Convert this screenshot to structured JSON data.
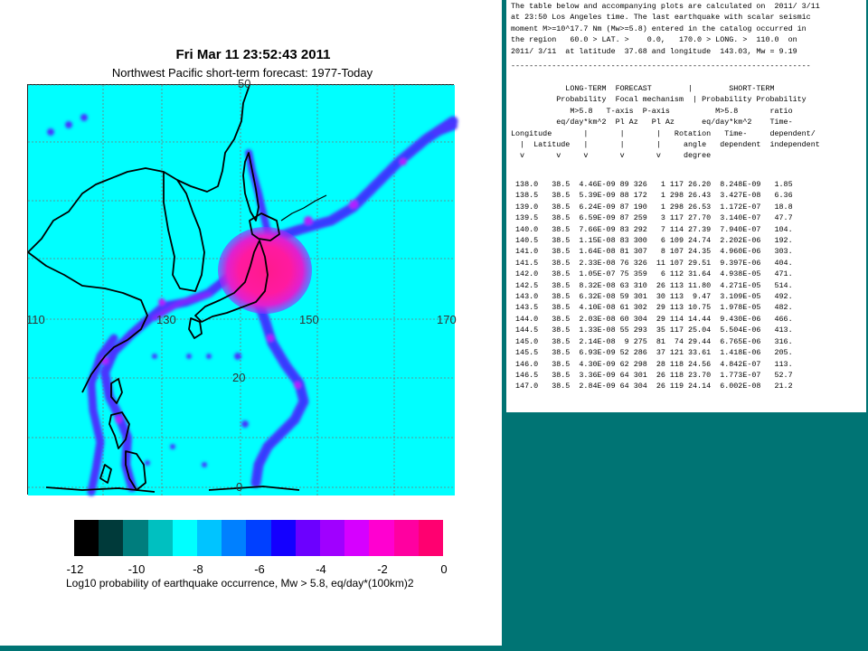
{
  "map": {
    "title": "Fri Mar 11 23:52:43 2011",
    "subtitle": "Northwest Pacific short-term forecast: 1977-Today",
    "lon_labels": [
      "110",
      "130",
      "150",
      "170"
    ],
    "lat_labels": [
      "50",
      "20",
      "0"
    ],
    "colors": {
      "ocean": "#00ffff",
      "grid": "#888888",
      "coast": "#000000",
      "hot": "#ff1a99",
      "cluster": "#4a36ff"
    }
  },
  "colorbar": {
    "colors": [
      "#000000",
      "#003a3a",
      "#007d7d",
      "#00c0c0",
      "#00ffff",
      "#00c4ff",
      "#0080ff",
      "#0040ff",
      "#1400ff",
      "#6c00ff",
      "#a000ff",
      "#d600ff",
      "#ff00d0",
      "#ff00a0",
      "#ff0070"
    ],
    "ticks": [
      "-12",
      "-10",
      "-8",
      "-6",
      "-4",
      "-2",
      "0"
    ],
    "label": "Log10 probability of earthquake occurrence, Mw > 5.8, eq/day*(100km)2"
  },
  "table": {
    "intro": [
      "The table below and accompanying plots are calculated on  2011/ 3/11",
      "at 23:50 Los Angeles time. The last earthquake with scalar seismic",
      "moment M>=10^17.7 Nm (Mw>=5.8) entered in the catalog occurred in",
      "the region   60.0 > LAT. >    0.0,   170.0 > LONG. >  110.0  on",
      "2011/ 3/11  at latitude  37.68 and longitude  143.03, Mw = 9.19"
    ],
    "separator": "------------------------------------------------------------------",
    "header": [
      "            LONG-TERM  FORECAST        |        SHORT-TERM",
      "          Probability  Focal mechanism  | Probability Probability",
      "             M>5.8   T-axis  P-axis          M>5.8       ratio",
      "          eq/day*km^2  Pl Az   Pl Az      eq/day*km^2    Time-",
      "Longitude       |       |       |   Rotation   Time-     dependent/",
      "  |  Latitude   |       |       |     angle   dependent  independent",
      "  v       v     v       v       v     degree"
    ],
    "rows": [
      [
        "138.0",
        "38.5",
        "4.46E-09",
        "89",
        "326",
        "1",
        "117",
        "26.20",
        "8.248E-09",
        "1.85"
      ],
      [
        "138.5",
        "38.5",
        "5.39E-09",
        "88",
        "172",
        "1",
        "298",
        "26.43",
        "3.427E-08",
        "6.36"
      ],
      [
        "139.0",
        "38.5",
        "6.24E-09",
        "87",
        "190",
        "1",
        "298",
        "26.53",
        "1.172E-07",
        "18.8"
      ],
      [
        "139.5",
        "38.5",
        "6.59E-09",
        "87",
        "259",
        "3",
        "117",
        "27.70",
        "3.140E-07",
        "47.7"
      ],
      [
        "140.0",
        "38.5",
        "7.66E-09",
        "83",
        "292",
        "7",
        "114",
        "27.39",
        "7.940E-07",
        "104."
      ],
      [
        "140.5",
        "38.5",
        "1.15E-08",
        "83",
        "300",
        "6",
        "109",
        "24.74",
        "2.202E-06",
        "192."
      ],
      [
        "141.0",
        "38.5",
        "1.64E-08",
        "81",
        "307",
        "8",
        "107",
        "24.35",
        "4.960E-06",
        "303."
      ],
      [
        "141.5",
        "38.5",
        "2.33E-08",
        "76",
        "326",
        "11",
        "107",
        "29.51",
        "9.397E-06",
        "404."
      ],
      [
        "142.0",
        "38.5",
        "1.05E-07",
        "75",
        "359",
        "6",
        "112",
        "31.64",
        "4.938E-05",
        "471."
      ],
      [
        "142.5",
        "38.5",
        "8.32E-08",
        "63",
        "310",
        "26",
        "113",
        "11.80",
        "4.271E-05",
        "514."
      ],
      [
        "143.0",
        "38.5",
        "6.32E-08",
        "59",
        "301",
        "30",
        "113",
        "9.47",
        "3.109E-05",
        "492."
      ],
      [
        "143.5",
        "38.5",
        "4.10E-08",
        "61",
        "302",
        "29",
        "113",
        "10.75",
        "1.978E-05",
        "482."
      ],
      [
        "144.0",
        "38.5",
        "2.03E-08",
        "60",
        "304",
        "29",
        "114",
        "14.44",
        "9.430E-06",
        "466."
      ],
      [
        "144.5",
        "38.5",
        "1.33E-08",
        "55",
        "293",
        "35",
        "117",
        "25.04",
        "5.504E-06",
        "413."
      ],
      [
        "145.0",
        "38.5",
        "2.14E-08",
        "9",
        "275",
        "81",
        "74",
        "29.44",
        "6.765E-06",
        "316."
      ],
      [
        "145.5",
        "38.5",
        "6.93E-09",
        "52",
        "286",
        "37",
        "121",
        "33.61",
        "1.418E-06",
        "205."
      ],
      [
        "146.0",
        "38.5",
        "4.30E-09",
        "62",
        "298",
        "28",
        "118",
        "24.56",
        "4.842E-07",
        "113."
      ],
      [
        "146.5",
        "38.5",
        "3.36E-09",
        "64",
        "301",
        "26",
        "118",
        "23.70",
        "1.773E-07",
        "52.7"
      ],
      [
        "147.0",
        "38.5",
        "2.84E-09",
        "64",
        "304",
        "26",
        "119",
        "24.14",
        "6.002E-08",
        "21.2"
      ]
    ]
  }
}
